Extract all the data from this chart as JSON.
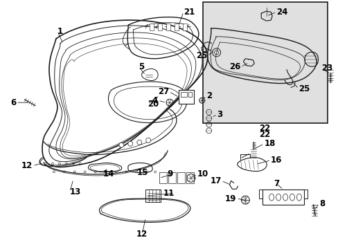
{
  "background_color": "#ffffff",
  "line_color": "#1a1a1a",
  "text_color": "#000000",
  "inset_bg": "#e0e0e0",
  "fig_width": 4.89,
  "fig_height": 3.6,
  "dpi": 100,
  "font_size": 7.0,
  "bold_font_size": 8.5
}
